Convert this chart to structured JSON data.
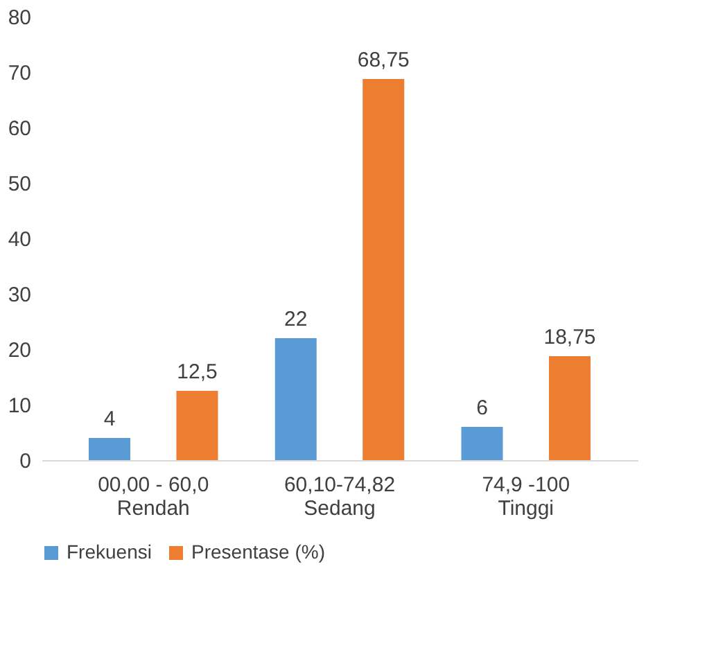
{
  "chart_data": {
    "type": "bar",
    "categories": [
      "00,00 - 60,0\nRendah",
      "60,10-74,82\nSedang",
      "74,9 -100\nTinggi"
    ],
    "series": [
      {
        "name": "Frekuensi",
        "color": "#5b9bd5",
        "values": [
          4,
          22,
          6
        ],
        "value_labels": [
          "4",
          "22",
          "6"
        ]
      },
      {
        "name": "Presentase (%)",
        "color": "#ed7d31",
        "values": [
          12.5,
          68.75,
          18.75
        ],
        "value_labels": [
          "12,5",
          "68,75",
          "18,75"
        ]
      }
    ],
    "ylim": [
      0,
      80
    ],
    "yticks": [
      0,
      10,
      20,
      30,
      40,
      50,
      60,
      70,
      80
    ],
    "grid": false,
    "legend": "bottom"
  }
}
